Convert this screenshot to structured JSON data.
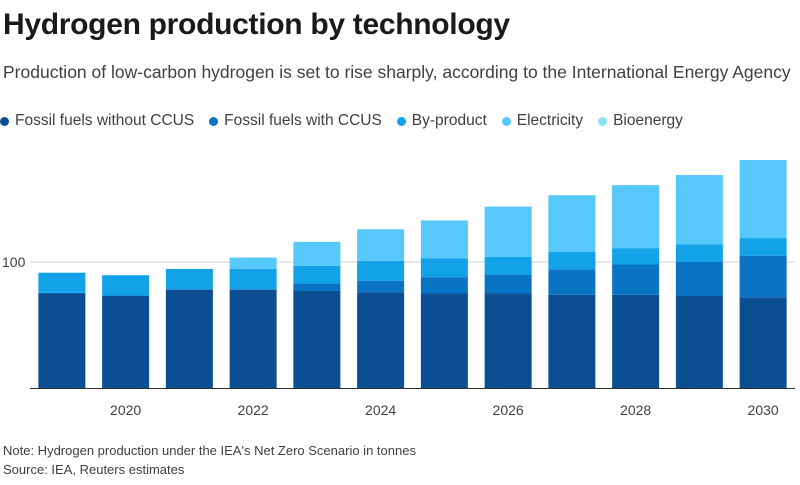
{
  "title": "Hydrogen production by technology",
  "subtitle": "Production of low-carbon hydrogen is set to rise sharply, according to the International Energy Agency",
  "note": "Note: Hydrogen production under the IEA's Net Zero Scenario in tonnes",
  "source": "Source: IEA, Reuters estimates",
  "chart_data": {
    "type": "bar",
    "stacked": true,
    "categories": [
      "2019",
      "2020",
      "2021",
      "2022",
      "2023",
      "2024",
      "2025",
      "2026",
      "2027",
      "2028",
      "2029",
      "2030"
    ],
    "x_tick_labels": [
      "2020",
      "2022",
      "2024",
      "2026",
      "2028",
      "2030"
    ],
    "y_ticks": [
      100
    ],
    "ylim": [
      0,
      185
    ],
    "grid": true,
    "legend_position": "top-left",
    "series": [
      {
        "name": "Fossil fuels without CCUS",
        "color": "#0b4f93",
        "values": [
          75,
          73,
          78,
          78,
          77,
          76,
          75,
          75,
          74,
          74,
          73,
          72
        ]
      },
      {
        "name": "Fossil fuels with CCUS",
        "color": "#0a74c4",
        "values": [
          0.5,
          0.5,
          0.5,
          0.5,
          6,
          9,
          13,
          15,
          20,
          24,
          27,
          33
        ]
      },
      {
        "name": "By-product",
        "color": "#11a2e8",
        "values": [
          16,
          16,
          16,
          16,
          14,
          16,
          15,
          14,
          14,
          13,
          14,
          14
        ]
      },
      {
        "name": "Electricity",
        "color": "#56c8fa",
        "values": [
          0,
          0,
          0,
          9,
          19,
          25,
          30,
          40,
          45,
          50,
          55,
          62
        ]
      },
      {
        "name": "Bioenergy",
        "color": "#8de1fc",
        "values": [
          0,
          0,
          0,
          0,
          0,
          0,
          0,
          0,
          0,
          0,
          0,
          0
        ]
      }
    ]
  }
}
